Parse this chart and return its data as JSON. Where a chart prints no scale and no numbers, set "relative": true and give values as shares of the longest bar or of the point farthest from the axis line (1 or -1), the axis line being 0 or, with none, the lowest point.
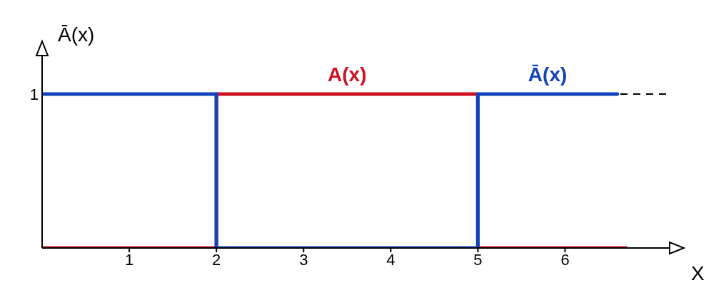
{
  "chart_data": {
    "type": "step",
    "relative": true,
    "xlabel": "X",
    "ylabel": "Ā(x)",
    "xlim": [
      0,
      7.2
    ],
    "xticks": [
      1,
      2,
      3,
      4,
      5,
      6
    ],
    "series": [
      {
        "name": "A(x)",
        "color": "#cc1122",
        "x": [
          0,
          2,
          5,
          6.7
        ],
        "values": [
          0,
          1,
          0,
          0
        ]
      },
      {
        "name": "Ā(x)",
        "color": "#1144bb",
        "x": [
          0,
          2,
          5,
          6.6
        ],
        "values": [
          1,
          0,
          1,
          1
        ]
      }
    ],
    "ref_lines": [
      {
        "axis": "y",
        "value": 1,
        "label": "1",
        "color": "#000000",
        "line_style": "dashed"
      }
    ]
  }
}
